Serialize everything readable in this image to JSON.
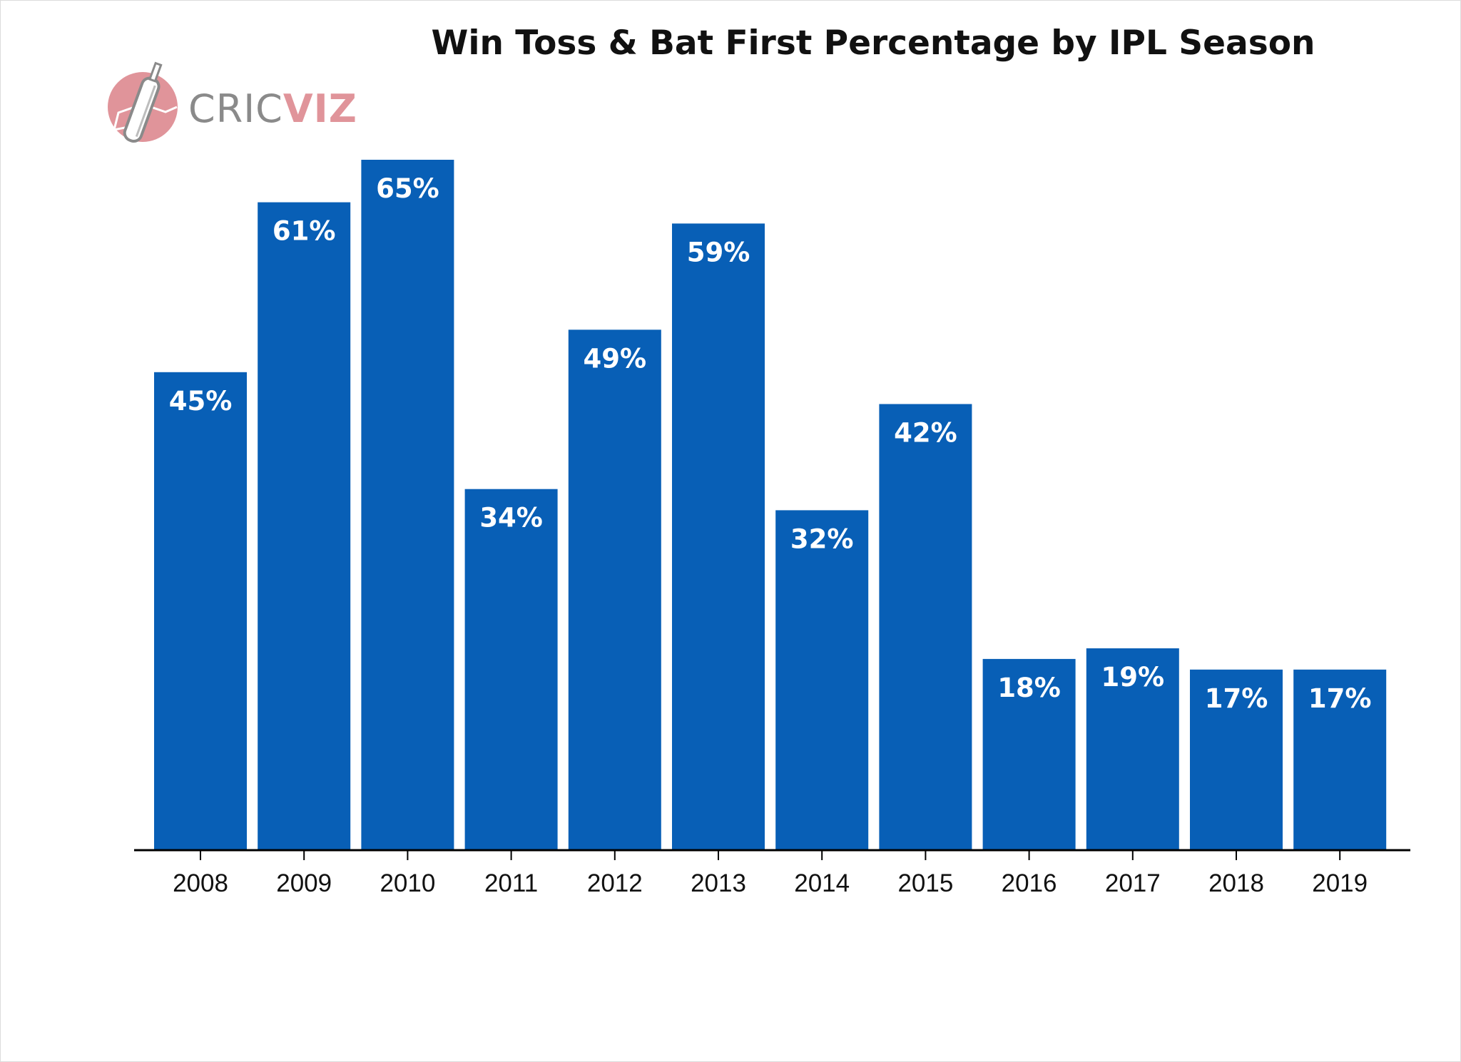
{
  "chart_data": {
    "type": "bar",
    "title": "Win Toss & Bat First Percentage by IPL Season",
    "xlabel": "",
    "ylabel": "",
    "categories": [
      "2008",
      "2009",
      "2010",
      "2011",
      "2012",
      "2013",
      "2014",
      "2015",
      "2016",
      "2017",
      "2018",
      "2019"
    ],
    "values": [
      45,
      61,
      65,
      34,
      49,
      59,
      32,
      42,
      18,
      19,
      17,
      17
    ],
    "value_labels": [
      "45%",
      "61%",
      "65%",
      "34%",
      "49%",
      "59%",
      "32%",
      "42%",
      "18%",
      "19%",
      "17%",
      "17%"
    ],
    "ylim": [
      0,
      70
    ],
    "grid": false,
    "legend": "none",
    "bar_color": "#085fb6",
    "label_color": "#ffffff"
  },
  "logo": {
    "text_part1": "CRIC",
    "text_part2": "VIZ",
    "color_part1": "#8a8a8a",
    "color_part2": "#e0949a",
    "icon": "cricket-bat-icon"
  }
}
